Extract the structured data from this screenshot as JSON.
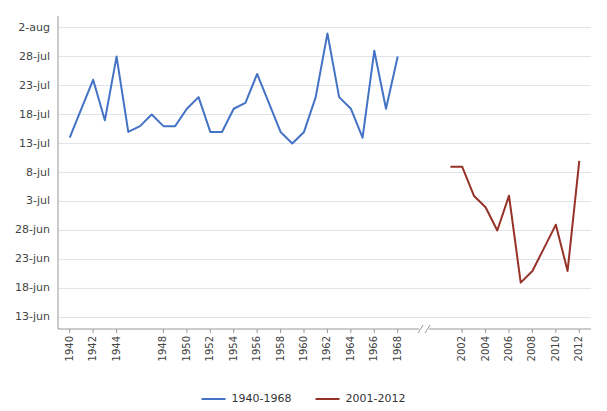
{
  "chart_data": {
    "type": "line",
    "series": [
      {
        "name": "1940-1968",
        "color": "#4472C4",
        "x": [
          1940,
          1941,
          1942,
          1943,
          1944,
          1945,
          1946,
          1947,
          1948,
          1949,
          1950,
          1951,
          1952,
          1953,
          1954,
          1955,
          1956,
          1957,
          1958,
          1959,
          1960,
          1961,
          1962,
          1963,
          1964,
          1965,
          1966,
          1967,
          1968
        ],
        "values": [
          195,
          200,
          205,
          198,
          209,
          196,
          197,
          199,
          197,
          197,
          200,
          202,
          196,
          196,
          200,
          201,
          206,
          201,
          196,
          194,
          196,
          202,
          213,
          202,
          200,
          195,
          210,
          200,
          209
        ]
      },
      {
        "name": "2001-2012",
        "color": "#963228",
        "x": [
          2001,
          2002,
          2003,
          2004,
          2005,
          2006,
          2007,
          2008,
          2009,
          2010,
          2011,
          2012
        ],
        "values": [
          190,
          190,
          185,
          183,
          179,
          185,
          170,
          172,
          176,
          180,
          172,
          191
        ]
      }
    ],
    "xlim": [
      1939,
      2013
    ],
    "xticks": [
      1940,
      1942,
      1944,
      1948,
      1950,
      1952,
      1954,
      1956,
      1958,
      1960,
      1962,
      1964,
      1966,
      1968,
      2002,
      2004,
      2006,
      2008,
      2010,
      2012
    ],
    "ylim": [
      162,
      216
    ],
    "yticks": [
      {
        "value": 164,
        "label": "13-jun"
      },
      {
        "value": 169,
        "label": "18-jun"
      },
      {
        "value": 174,
        "label": "23-jun"
      },
      {
        "value": 179,
        "label": "28-jun"
      },
      {
        "value": 184,
        "label": "3-jul"
      },
      {
        "value": 189,
        "label": "8-jul"
      },
      {
        "value": 194,
        "label": "13-jul"
      },
      {
        "value": 199,
        "label": "18-jul"
      },
      {
        "value": 204,
        "label": "23-jul"
      },
      {
        "value": 209,
        "label": "28-jul"
      },
      {
        "value": 214,
        "label": "2-aug"
      }
    ],
    "grid": true,
    "legend": "bottom"
  }
}
